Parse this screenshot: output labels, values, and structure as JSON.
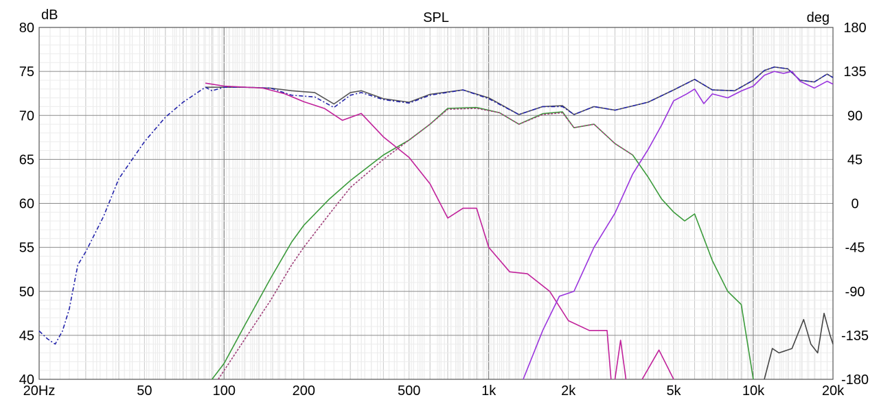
{
  "chart_data": {
    "type": "line",
    "title": "SPL",
    "ylabel_left": "dB",
    "ylabel_right": "deg",
    "x_scale": "log",
    "xlim": [
      20,
      20000
    ],
    "ylim": [
      40,
      80
    ],
    "ylim_right": [
      -180,
      180
    ],
    "grid": true,
    "x_ticks": [
      {
        "value": 20,
        "label": "20Hz"
      },
      {
        "value": 50,
        "label": "50"
      },
      {
        "value": 100,
        "label": "100"
      },
      {
        "value": 200,
        "label": "200"
      },
      {
        "value": 500,
        "label": "500"
      },
      {
        "value": 1000,
        "label": "1k"
      },
      {
        "value": 2000,
        "label": "2k"
      },
      {
        "value": 5000,
        "label": "5k"
      },
      {
        "value": 10000,
        "label": "10k"
      },
      {
        "value": 20000,
        "label": "20k"
      }
    ],
    "y_ticks_left": [
      80,
      75,
      70,
      65,
      60,
      55,
      50,
      45,
      40
    ],
    "y_ticks_right": [
      180,
      135,
      90,
      45,
      0,
      -45,
      -90,
      -135,
      -180
    ],
    "series": [
      {
        "color": "#555555",
        "axis": "left",
        "dash": "",
        "points": [
          [
            85,
            73.2
          ],
          [
            100,
            73.2
          ],
          [
            120,
            73.2
          ],
          [
            150,
            73.1
          ],
          [
            180,
            72.8
          ],
          [
            220,
            72.6
          ],
          [
            260,
            71.3
          ],
          [
            300,
            72.6
          ],
          [
            330,
            72.8
          ],
          [
            400,
            71.9
          ],
          [
            500,
            71.5
          ],
          [
            600,
            72.4
          ],
          [
            800,
            72.9
          ],
          [
            1000,
            72.0
          ],
          [
            1300,
            70.1
          ],
          [
            1600,
            71.0
          ],
          [
            1900,
            71.1
          ],
          [
            2100,
            70.1
          ],
          [
            2500,
            71.0
          ],
          [
            3000,
            70.6
          ],
          [
            4000,
            71.5
          ],
          [
            5000,
            72.9
          ],
          [
            6000,
            74.1
          ],
          [
            7000,
            72.9
          ],
          [
            8500,
            72.8
          ],
          [
            10000,
            74.0
          ],
          [
            11000,
            75.1
          ],
          [
            12000,
            75.5
          ],
          [
            13500,
            75.3
          ],
          [
            15000,
            74.0
          ],
          [
            17000,
            73.8
          ],
          [
            19000,
            74.7
          ],
          [
            20000,
            74.3
          ]
        ]
      },
      {
        "color": "#2222aa",
        "axis": "left",
        "dash": "6,3,2,3",
        "points": [
          [
            20,
            45.5
          ],
          [
            21.5,
            44.6
          ],
          [
            23,
            44
          ],
          [
            24.5,
            45.5
          ],
          [
            26,
            48
          ],
          [
            28,
            53
          ],
          [
            30,
            54.5
          ],
          [
            35,
            58.5
          ],
          [
            40,
            62.8
          ],
          [
            50,
            67
          ],
          [
            60,
            69.8
          ],
          [
            70,
            71.5
          ],
          [
            85,
            73.2
          ],
          [
            90,
            72.8
          ],
          [
            100,
            73.2
          ],
          [
            120,
            73.2
          ],
          [
            150,
            73.1
          ],
          [
            180,
            72.3
          ],
          [
            220,
            72.1
          ],
          [
            260,
            70.9
          ],
          [
            300,
            72.3
          ],
          [
            330,
            72.6
          ],
          [
            400,
            71.8
          ],
          [
            500,
            71.4
          ],
          [
            600,
            72.3
          ],
          [
            800,
            72.9
          ],
          [
            1000,
            71.9
          ],
          [
            1300,
            70.1
          ],
          [
            1600,
            71.0
          ],
          [
            1900,
            71.0
          ],
          [
            2100,
            70.1
          ],
          [
            2500,
            71.0
          ],
          [
            3000,
            70.6
          ],
          [
            4000,
            71.5
          ],
          [
            5000,
            72.9
          ],
          [
            6000,
            74.1
          ],
          [
            7000,
            72.9
          ],
          [
            8500,
            72.8
          ],
          [
            10000,
            74.0
          ],
          [
            11000,
            75.1
          ],
          [
            12000,
            75.5
          ],
          [
            13500,
            75.3
          ],
          [
            15000,
            74.0
          ],
          [
            17000,
            73.8
          ],
          [
            19000,
            74.7
          ],
          [
            20000,
            74.3
          ]
        ]
      },
      {
        "color": "#3a9a3a",
        "axis": "left",
        "dash": "",
        "points": [
          [
            90,
            40
          ],
          [
            100,
            41.8
          ],
          [
            120,
            46.2
          ],
          [
            150,
            51.5
          ],
          [
            180,
            55.6
          ],
          [
            200,
            57.5
          ],
          [
            250,
            60.5
          ],
          [
            300,
            62.6
          ],
          [
            400,
            65.5
          ],
          [
            500,
            67.2
          ],
          [
            600,
            69
          ],
          [
            700,
            70.8
          ],
          [
            900,
            70.9
          ],
          [
            1100,
            70.3
          ],
          [
            1300,
            69.0
          ],
          [
            1600,
            70.2
          ],
          [
            1900,
            70.4
          ],
          [
            2100,
            68.6
          ],
          [
            2500,
            69.0
          ],
          [
            3000,
            66.8
          ],
          [
            3500,
            65.5
          ],
          [
            4000,
            63.0
          ],
          [
            4500,
            60.5
          ],
          [
            5000,
            59.0
          ],
          [
            5500,
            58
          ],
          [
            6000,
            58.8
          ],
          [
            7000,
            53.5
          ],
          [
            8000,
            50
          ],
          [
            9000,
            48.5
          ],
          [
            10000,
            40
          ]
        ]
      },
      {
        "color": "#a0407a",
        "axis": "left",
        "dash": "3,2",
        "points": [
          [
            95,
            40
          ],
          [
            120,
            44.6
          ],
          [
            150,
            49
          ],
          [
            180,
            53
          ],
          [
            200,
            55
          ],
          [
            250,
            58.8
          ],
          [
            300,
            61.8
          ],
          [
            400,
            65
          ],
          [
            500,
            67.2
          ],
          [
            600,
            69
          ],
          [
            700,
            70.7
          ],
          [
            900,
            70.8
          ],
          [
            1100,
            70.3
          ],
          [
            1300,
            69.0
          ],
          [
            1600,
            70.1
          ],
          [
            1900,
            70.3
          ],
          [
            2100,
            68.6
          ],
          [
            2500,
            69.0
          ],
          [
            3000,
            66.8
          ],
          [
            3500,
            65.5
          ]
        ]
      },
      {
        "color": "#444444",
        "axis": "left",
        "dash": "",
        "points": [
          [
            11000,
            40
          ],
          [
            11800,
            43.5
          ],
          [
            12500,
            43
          ],
          [
            14000,
            43.5
          ],
          [
            15500,
            46.8
          ],
          [
            16500,
            44
          ],
          [
            17500,
            43
          ],
          [
            18500,
            47.5
          ],
          [
            19500,
            45
          ],
          [
            20000,
            44
          ]
        ]
      },
      {
        "color": "#c0209a",
        "axis": "right",
        "dash": "",
        "points": [
          [
            85,
            123
          ],
          [
            100,
            120
          ],
          [
            140,
            118
          ],
          [
            170,
            112
          ],
          [
            200,
            104
          ],
          [
            240,
            97
          ],
          [
            280,
            85
          ],
          [
            330,
            92
          ],
          [
            400,
            68
          ],
          [
            500,
            47
          ],
          [
            600,
            20
          ],
          [
            700,
            -15
          ],
          [
            800,
            -5
          ],
          [
            900,
            -5
          ],
          [
            1000,
            -45
          ],
          [
            1200,
            -70
          ],
          [
            1400,
            -72
          ],
          [
            1700,
            -90
          ],
          [
            2000,
            -120
          ],
          [
            2400,
            -130
          ],
          [
            2800,
            -130
          ],
          [
            2900,
            -180
          ]
        ]
      },
      {
        "color": "#9933dd",
        "axis": "right",
        "dash": "",
        "points": [
          [
            1350,
            -180
          ],
          [
            1600,
            -130
          ],
          [
            1850,
            -95
          ],
          [
            2100,
            -90
          ],
          [
            2500,
            -45
          ],
          [
            3000,
            -10
          ],
          [
            3500,
            30
          ],
          [
            4000,
            55
          ],
          [
            4500,
            80
          ],
          [
            5000,
            105
          ],
          [
            5600,
            112
          ],
          [
            6000,
            117
          ],
          [
            6500,
            102
          ],
          [
            7000,
            112
          ],
          [
            8000,
            108
          ],
          [
            9000,
            115
          ],
          [
            10000,
            120
          ],
          [
            11000,
            131
          ],
          [
            12000,
            135
          ],
          [
            13000,
            133
          ],
          [
            14000,
            135
          ],
          [
            15000,
            125
          ],
          [
            17000,
            118
          ],
          [
            19000,
            125
          ],
          [
            20000,
            122
          ]
        ]
      }
    ],
    "phase_fragments": [
      {
        "color": "#c0209a",
        "points": [
          [
            3000,
            -180
          ],
          [
            3150,
            -140
          ],
          [
            3300,
            -180
          ]
        ]
      },
      {
        "color": "#c0209a",
        "points": [
          [
            3800,
            -180
          ],
          [
            4400,
            -150
          ],
          [
            5000,
            -180
          ]
        ]
      }
    ]
  }
}
